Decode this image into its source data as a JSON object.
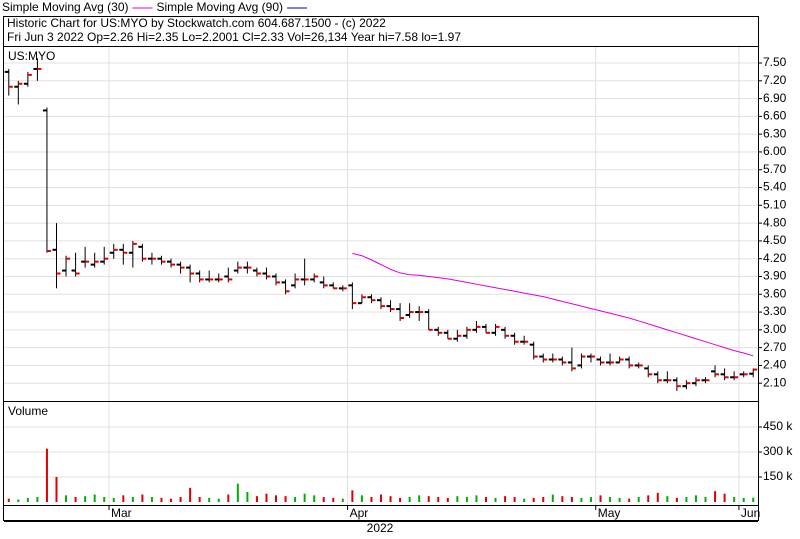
{
  "chart_data": {
    "type": "ohlc",
    "title": "Historic Chart for US:MYO by Stockwatch.com 604.687.1500 - (c) 2022",
    "subtitle": "Fri Jun  3 2022  Op=2.26  Hi=2.35  Lo=2.2001  Cl=2.33  Vol=26,134  Year hi=7.58  lo=1.97",
    "symbol": "US:MYO",
    "year_label": "2022",
    "categories": [
      null,
      null,
      null,
      null,
      null,
      null,
      null,
      null,
      null,
      null,
      null,
      "Mar",
      null,
      null,
      null,
      null,
      null,
      null,
      null,
      null,
      null,
      null,
      null,
      null,
      null,
      null,
      null,
      null,
      null,
      null,
      null,
      null,
      null,
      null,
      null,
      null,
      "Apr",
      null,
      null,
      null,
      null,
      null,
      null,
      null,
      null,
      null,
      null,
      null,
      null,
      null,
      null,
      null,
      null,
      null,
      null,
      null,
      null,
      null,
      null,
      null,
      null,
      null,
      "May",
      null,
      null,
      null,
      null,
      null,
      null,
      null,
      null,
      null,
      null,
      null,
      null,
      null,
      null,
      "Jun",
      null
    ],
    "open": [
      7.35,
      7.1,
      7.15,
      7.4,
      6.7,
      4.35,
      4.0,
      4.0,
      4.15,
      4.1,
      4.15,
      4.3,
      4.35,
      4.3,
      4.4,
      4.2,
      4.2,
      4.15,
      4.1,
      4.05,
      3.95,
      3.85,
      3.85,
      3.9,
      4.0,
      4.05,
      4.0,
      3.95,
      3.9,
      3.8,
      3.75,
      3.85,
      3.85,
      3.8,
      3.75,
      3.7,
      3.75,
      3.45,
      3.55,
      3.5,
      3.4,
      3.35,
      3.25,
      3.3,
      3.3,
      3.0,
      2.95,
      2.85,
      2.9,
      3.0,
      3.05,
      2.95,
      3.0,
      2.9,
      2.8,
      2.75,
      2.55,
      2.5,
      2.5,
      2.45,
      2.4,
      2.55,
      2.5,
      2.45,
      2.45,
      2.5,
      2.4,
      2.35,
      2.25,
      2.15,
      2.15,
      2.05,
      2.1,
      2.15,
      2.3,
      2.25,
      2.2,
      2.25,
      2.26
    ],
    "high": [
      7.4,
      7.2,
      7.35,
      7.58,
      6.75,
      4.8,
      4.25,
      4.3,
      4.4,
      4.3,
      4.4,
      4.45,
      4.45,
      4.5,
      4.45,
      4.3,
      4.25,
      4.2,
      4.15,
      4.1,
      4.0,
      4.0,
      3.95,
      4.05,
      4.15,
      4.15,
      4.05,
      4.05,
      3.95,
      3.85,
      3.95,
      4.2,
      3.95,
      3.9,
      3.8,
      3.75,
      3.8,
      3.6,
      3.6,
      3.55,
      3.5,
      3.45,
      3.45,
      3.4,
      3.35,
      3.05,
      3.0,
      3.0,
      3.05,
      3.15,
      3.1,
      3.1,
      3.05,
      2.95,
      2.9,
      2.8,
      2.6,
      2.6,
      2.55,
      2.7,
      2.6,
      2.6,
      2.55,
      2.6,
      2.55,
      2.55,
      2.45,
      2.4,
      2.3,
      2.3,
      2.2,
      2.15,
      2.2,
      2.2,
      2.4,
      2.35,
      2.3,
      2.3,
      2.35
    ],
    "low": [
      6.95,
      6.8,
      7.1,
      7.2,
      4.3,
      3.7,
      3.9,
      3.9,
      4.05,
      4.05,
      4.1,
      4.2,
      4.1,
      4.05,
      4.15,
      4.1,
      4.1,
      4.05,
      3.95,
      3.8,
      3.8,
      3.8,
      3.8,
      3.8,
      3.95,
      3.95,
      3.9,
      3.85,
      3.75,
      3.6,
      3.7,
      3.75,
      3.8,
      3.7,
      3.7,
      3.65,
      3.35,
      3.45,
      3.45,
      3.35,
      3.3,
      3.15,
      3.2,
      3.15,
      3.0,
      2.9,
      2.85,
      2.8,
      2.85,
      2.95,
      2.95,
      2.9,
      2.85,
      2.75,
      2.75,
      2.5,
      2.45,
      2.45,
      2.4,
      2.3,
      2.35,
      2.45,
      2.4,
      2.4,
      2.45,
      2.35,
      2.35,
      2.2,
      2.1,
      2.1,
      1.97,
      2.0,
      2.05,
      2.1,
      2.2,
      2.15,
      2.15,
      2.2,
      2.2001
    ],
    "close": [
      7.1,
      7.15,
      7.3,
      7.4,
      4.33,
      3.95,
      4.2,
      3.95,
      4.15,
      4.15,
      4.2,
      4.35,
      4.3,
      4.45,
      4.2,
      4.2,
      4.15,
      4.1,
      4.05,
      3.95,
      3.85,
      3.85,
      3.85,
      3.85,
      4.05,
      4.05,
      3.95,
      3.9,
      3.8,
      3.65,
      3.85,
      3.85,
      3.9,
      3.75,
      3.7,
      3.7,
      3.45,
      3.55,
      3.5,
      3.4,
      3.35,
      3.2,
      3.3,
      3.3,
      3.0,
      2.95,
      2.85,
      2.9,
      3.0,
      3.05,
      2.95,
      3.05,
      2.9,
      2.8,
      2.8,
      2.55,
      2.5,
      2.5,
      2.45,
      2.35,
      2.55,
      2.55,
      2.45,
      2.45,
      2.5,
      2.4,
      2.4,
      2.25,
      2.15,
      2.15,
      2.05,
      2.1,
      2.15,
      2.15,
      2.25,
      2.2,
      2.2,
      2.25,
      2.33
    ],
    "bar_color": "#000000",
    "close_color": "#e00000",
    "ylim": [
      1.8,
      7.77
    ],
    "yticks": [
      {
        "value": 2.1,
        "label": "2.10"
      },
      {
        "value": 2.4,
        "label": "2.40"
      },
      {
        "value": 2.7,
        "label": "2.70"
      },
      {
        "value": 3.0,
        "label": "3.00"
      },
      {
        "value": 3.3,
        "label": "3.30"
      },
      {
        "value": 3.6,
        "label": "3.60"
      },
      {
        "value": 3.9,
        "label": "3.90"
      },
      {
        "value": 4.2,
        "label": "4.20"
      },
      {
        "value": 4.5,
        "label": "4.50"
      },
      {
        "value": 4.8,
        "label": "4.80"
      },
      {
        "value": 5.1,
        "label": "5.10"
      },
      {
        "value": 5.4,
        "label": "5.40"
      },
      {
        "value": 5.7,
        "label": "5.70"
      },
      {
        "value": 6.0,
        "label": "6.00"
      },
      {
        "value": 6.3,
        "label": "6.30"
      },
      {
        "value": 6.6,
        "label": "6.60"
      },
      {
        "value": 6.9,
        "label": "6.90"
      },
      {
        "value": 7.2,
        "label": "7.20"
      },
      {
        "value": 7.5,
        "label": "7.50"
      }
    ],
    "grid": true,
    "series": [
      {
        "name": "Simple Moving Avg (30)",
        "color": "#e000e0",
        "values": [
          null,
          null,
          null,
          null,
          null,
          null,
          null,
          null,
          null,
          null,
          null,
          null,
          null,
          null,
          null,
          null,
          null,
          null,
          null,
          null,
          null,
          null,
          null,
          null,
          null,
          null,
          null,
          null,
          null,
          null,
          null,
          null,
          null,
          null,
          null,
          null,
          4.29,
          4.25,
          4.18,
          4.1,
          4.02,
          3.96,
          3.93,
          3.92,
          3.9,
          3.88,
          3.86,
          3.83,
          3.8,
          3.77,
          3.74,
          3.71,
          3.68,
          3.65,
          3.62,
          3.59,
          3.56,
          3.52,
          3.48,
          3.44,
          3.4,
          3.36,
          3.32,
          3.28,
          3.24,
          3.2,
          3.15,
          3.1,
          3.05,
          3.0,
          2.95,
          2.9,
          2.85,
          2.8,
          2.75,
          2.7,
          2.65,
          2.61,
          2.56
        ]
      },
      {
        "name": "Simple Moving Avg (90)",
        "color": "#0000c0",
        "values": [
          null,
          null,
          null,
          null,
          null,
          null,
          null,
          null,
          null,
          null,
          null,
          null,
          null,
          null,
          null,
          null,
          null,
          null,
          null,
          null,
          null,
          null,
          null,
          null,
          null,
          null,
          null,
          null,
          null,
          null,
          null,
          null,
          null,
          null,
          null,
          null,
          null,
          null,
          null,
          null,
          null,
          null,
          null,
          null,
          null,
          null,
          null,
          null,
          null,
          null,
          null,
          null,
          null,
          null,
          null,
          null,
          null,
          null,
          null,
          null,
          null,
          null,
          null,
          null,
          null,
          null,
          null,
          null,
          null,
          null,
          null,
          null,
          null,
          null,
          null,
          null,
          null,
          null,
          null
        ]
      }
    ],
    "volume": {
      "label": "Volume",
      "up_color": "#00b000",
      "down_color": "#e00000",
      "values": [
        20000,
        15000,
        25000,
        30000,
        320000,
        150000,
        40000,
        30000,
        35000,
        45000,
        30000,
        25000,
        40000,
        30000,
        45000,
        30000,
        25000,
        20000,
        30000,
        85000,
        30000,
        25000,
        20000,
        45000,
        110000,
        60000,
        35000,
        50000,
        40000,
        35000,
        30000,
        50000,
        40000,
        30000,
        25000,
        20000,
        70000,
        40000,
        30000,
        45000,
        35000,
        25000,
        30000,
        40000,
        35000,
        30000,
        25000,
        35000,
        30000,
        40000,
        30000,
        25000,
        35000,
        30000,
        20000,
        25000,
        30000,
        45000,
        35000,
        30000,
        25000,
        30000,
        40000,
        30000,
        25000,
        20000,
        30000,
        40000,
        55000,
        35000,
        25000,
        30000,
        40000,
        30000,
        65000,
        50000,
        30000,
        25000,
        26134
      ],
      "ylim": [
        0,
        600000
      ],
      "yticks": [
        {
          "value": 150000,
          "label": "150 k"
        },
        {
          "value": 300000,
          "label": "300 k"
        },
        {
          "value": 450000,
          "label": "450 k"
        }
      ]
    }
  }
}
